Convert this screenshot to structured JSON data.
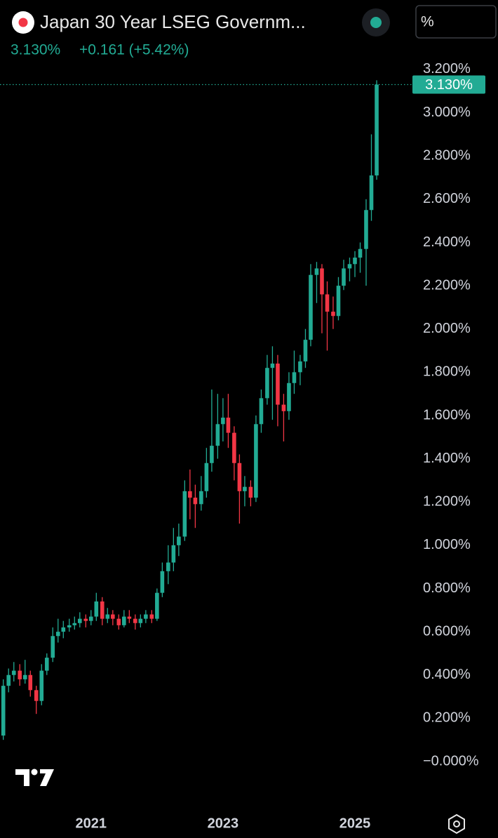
{
  "header": {
    "title": "Japan 30 Year LSEG Governm...",
    "price": "3.130%",
    "change": "+0.161 (+5.42%)",
    "unit_button": "%"
  },
  "chart_data": {
    "type": "candlestick",
    "up_color": "#22ab94",
    "down_color": "#f23645",
    "x": [
      2019.67,
      2019.75,
      2019.83,
      2019.92,
      2020.0,
      2020.08,
      2020.17,
      2020.25,
      2020.33,
      2020.42,
      2020.5,
      2020.58,
      2020.67,
      2020.75,
      2020.83,
      2020.92,
      2021.0,
      2021.08,
      2021.17,
      2021.25,
      2021.33,
      2021.42,
      2021.5,
      2021.58,
      2021.67,
      2021.75,
      2021.83,
      2021.92,
      2022.0,
      2022.08,
      2022.17,
      2022.25,
      2022.33,
      2022.42,
      2022.5,
      2022.58,
      2022.67,
      2022.75,
      2022.83,
      2022.92,
      2023.0,
      2023.08,
      2023.17,
      2023.25,
      2023.33,
      2023.42,
      2023.5,
      2023.58,
      2023.67,
      2023.75,
      2023.83,
      2023.92,
      2024.0,
      2024.08,
      2024.17,
      2024.25,
      2024.33,
      2024.42,
      2024.5,
      2024.58,
      2024.67,
      2024.75,
      2024.83,
      2024.92,
      2025.0,
      2025.08,
      2025.17,
      2025.25,
      2025.33
    ],
    "open": [
      0.12,
      0.35,
      0.4,
      0.42,
      0.38,
      0.4,
      0.33,
      0.28,
      0.42,
      0.48,
      0.58,
      0.6,
      0.62,
      0.63,
      0.64,
      0.66,
      0.65,
      0.67,
      0.74,
      0.66,
      0.68,
      0.66,
      0.63,
      0.67,
      0.66,
      0.64,
      0.66,
      0.68,
      0.66,
      0.78,
      0.88,
      0.92,
      1.0,
      1.04,
      1.25,
      1.22,
      1.19,
      1.25,
      1.38,
      1.46,
      1.56,
      1.59,
      1.52,
      1.38,
      1.25,
      1.27,
      1.22,
      1.56,
      1.68,
      1.82,
      1.84,
      1.65,
      1.62,
      1.75,
      1.8,
      1.85,
      1.95,
      2.25,
      2.28,
      2.16,
      2.08,
      2.06,
      2.2,
      2.28,
      2.3,
      2.33,
      2.37,
      2.55,
      2.71
    ],
    "high": [
      0.38,
      0.43,
      0.46,
      0.45,
      0.47,
      0.42,
      0.35,
      0.45,
      0.5,
      0.62,
      0.66,
      0.65,
      0.66,
      0.67,
      0.69,
      0.68,
      0.7,
      0.78,
      0.76,
      0.71,
      0.7,
      0.68,
      0.7,
      0.7,
      0.68,
      0.68,
      0.7,
      0.7,
      0.8,
      0.92,
      1.0,
      1.08,
      1.1,
      1.3,
      1.35,
      1.28,
      1.32,
      1.45,
      1.72,
      1.7,
      1.68,
      1.7,
      1.55,
      1.42,
      1.32,
      1.3,
      1.6,
      1.72,
      1.88,
      1.92,
      1.88,
      1.7,
      1.8,
      1.9,
      1.88,
      2.0,
      2.3,
      2.31,
      2.3,
      2.22,
      2.15,
      2.24,
      2.32,
      2.33,
      2.36,
      2.4,
      2.6,
      2.9,
      3.15
    ],
    "low": [
      0.1,
      0.32,
      0.37,
      0.35,
      0.36,
      0.3,
      0.22,
      0.26,
      0.4,
      0.46,
      0.55,
      0.57,
      0.6,
      0.61,
      0.62,
      0.62,
      0.63,
      0.65,
      0.63,
      0.64,
      0.63,
      0.61,
      0.62,
      0.64,
      0.61,
      0.62,
      0.64,
      0.64,
      0.65,
      0.76,
      0.82,
      0.88,
      0.95,
      1.02,
      1.12,
      1.08,
      1.16,
      1.22,
      1.34,
      1.4,
      1.48,
      1.45,
      1.3,
      1.1,
      1.18,
      1.18,
      1.2,
      1.52,
      1.65,
      1.58,
      1.55,
      1.48,
      1.58,
      1.7,
      1.74,
      1.82,
      1.92,
      2.12,
      1.98,
      1.9,
      2.0,
      2.04,
      2.18,
      2.22,
      2.24,
      2.26,
      2.2,
      2.5,
      2.69
    ],
    "close": [
      0.35,
      0.4,
      0.42,
      0.38,
      0.4,
      0.33,
      0.28,
      0.42,
      0.48,
      0.58,
      0.6,
      0.62,
      0.63,
      0.64,
      0.66,
      0.65,
      0.67,
      0.74,
      0.66,
      0.68,
      0.66,
      0.63,
      0.67,
      0.66,
      0.64,
      0.66,
      0.68,
      0.66,
      0.78,
      0.88,
      0.92,
      1.0,
      1.04,
      1.25,
      1.22,
      1.19,
      1.25,
      1.38,
      1.46,
      1.56,
      1.59,
      1.52,
      1.38,
      1.25,
      1.27,
      1.22,
      1.56,
      1.68,
      1.82,
      1.84,
      1.65,
      1.62,
      1.75,
      1.8,
      1.85,
      1.95,
      2.25,
      2.28,
      2.16,
      2.08,
      2.06,
      2.2,
      2.28,
      2.3,
      2.33,
      2.37,
      2.55,
      2.71,
      3.13
    ],
    "last_value": {
      "value": 3.13,
      "label": "3.130%"
    },
    "xlim": [
      2019.62,
      2025.84
    ],
    "xticks": [
      2021,
      2023,
      2025
    ],
    "ylim": [
      -0.05,
      3.245
    ],
    "yticks": [
      {
        "value": 3.2,
        "label": "3.200%"
      },
      {
        "value": 3.0,
        "label": "3.000%"
      },
      {
        "value": 2.8,
        "label": "2.800%"
      },
      {
        "value": 2.6,
        "label": "2.600%"
      },
      {
        "value": 2.4,
        "label": "2.400%"
      },
      {
        "value": 2.2,
        "label": "2.200%"
      },
      {
        "value": 2.0,
        "label": "2.000%"
      },
      {
        "value": 1.8,
        "label": "1.800%"
      },
      {
        "value": 1.6,
        "label": "1.600%"
      },
      {
        "value": 1.4,
        "label": "1.400%"
      },
      {
        "value": 1.2,
        "label": "1.200%"
      },
      {
        "value": 1.0,
        "label": "1.000%"
      },
      {
        "value": 0.8,
        "label": "0.800%"
      },
      {
        "value": 0.6,
        "label": "0.600%"
      },
      {
        "value": 0.4,
        "label": "0.400%"
      },
      {
        "value": 0.2,
        "label": "0.200%"
      },
      {
        "value": 0,
        "label": "−0.000%"
      }
    ],
    "grid": false
  }
}
